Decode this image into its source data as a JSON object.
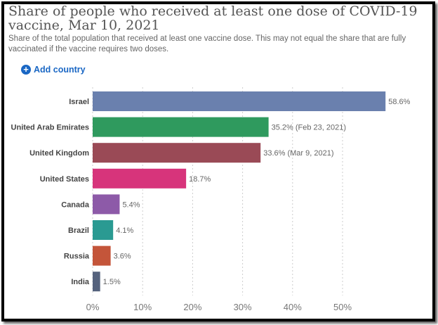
{
  "chart_data": {
    "type": "bar",
    "orientation": "horizontal",
    "title": "Share of people who received at least one dose of COVID-19 vaccine, Mar 10, 2021",
    "subtitle": "Share of the total population that received at least one vaccine dose. This may not equal the share that are fully vaccinated if the vaccine requires two doses.",
    "categories": [
      "Israel",
      "United Arab Emirates",
      "United Kingdom",
      "United States",
      "Canada",
      "Brazil",
      "Russia",
      "India"
    ],
    "values": [
      58.6,
      35.2,
      33.6,
      18.7,
      5.4,
      4.1,
      3.6,
      1.5
    ],
    "value_labels": [
      "58.6%",
      "35.2% (Feb 23, 2021)",
      "33.6% (Mar 9, 2021)",
      "18.7%",
      "5.4%",
      "4.1%",
      "3.6%",
      "1.5%"
    ],
    "colors": [
      "#6a80ae",
      "#2f9a5e",
      "#9a4a56",
      "#d7347b",
      "#8d5aa8",
      "#2a9a92",
      "#c4553a",
      "#55627d"
    ],
    "xlim": [
      0,
      60
    ],
    "xticks": [
      "0%",
      "10%",
      "20%",
      "30%",
      "40%",
      "50%"
    ],
    "xtick_values": [
      0,
      10,
      20,
      30,
      40,
      50
    ],
    "grid": true
  },
  "controls": {
    "add_country": "Add country",
    "add_icon": "plus-circle-icon"
  }
}
